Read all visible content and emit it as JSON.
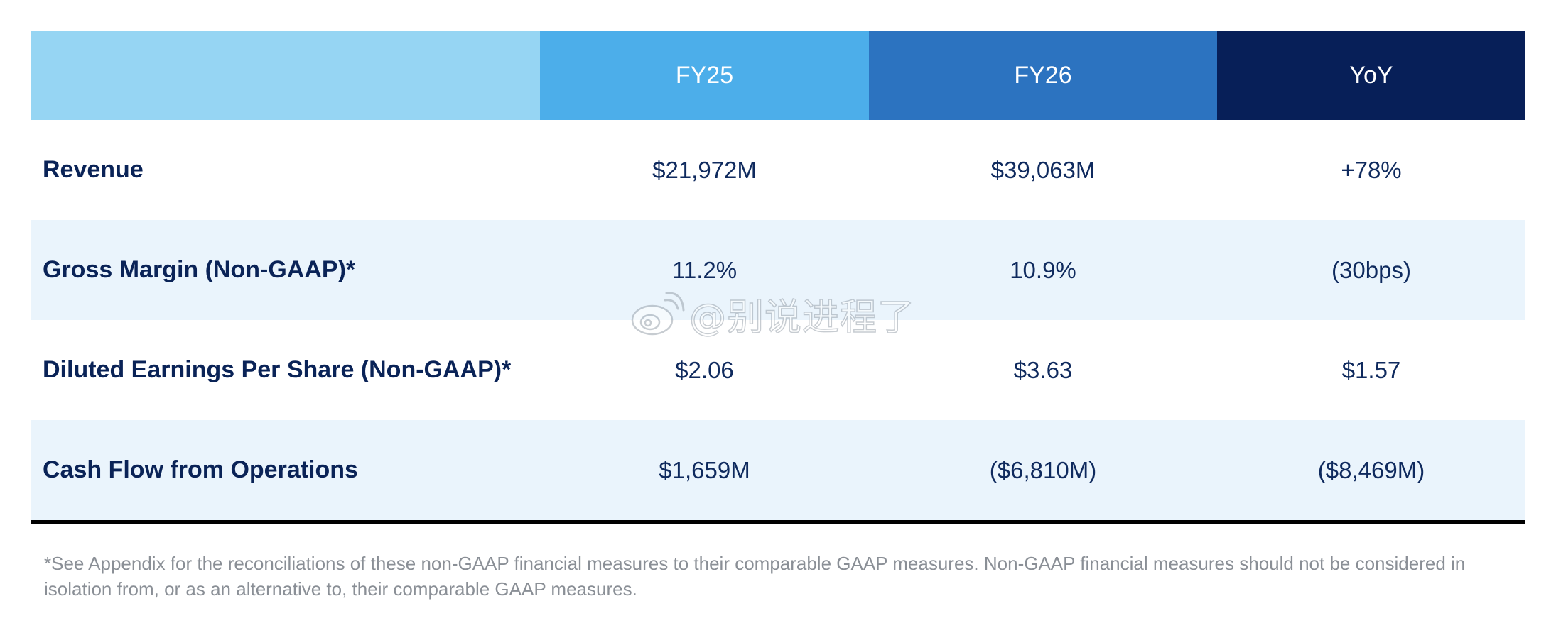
{
  "header": {
    "col_label": "",
    "col_fy25": "FY25",
    "col_fy26": "FY26",
    "col_yoy": "YoY"
  },
  "rows": [
    {
      "label": "Revenue",
      "fy25": "$21,972M",
      "fy26": "$39,063M",
      "yoy": "+78%"
    },
    {
      "label": "Gross Margin (Non-GAAP)*",
      "fy25": "11.2%",
      "fy26": "10.9%",
      "yoy": "(30bps)"
    },
    {
      "label": "Diluted Earnings Per Share (Non-GAAP)*",
      "fy25": "$2.06",
      "fy26": "$3.63",
      "yoy": "$1.57"
    },
    {
      "label": "Cash Flow from Operations",
      "fy25": "$1,659M",
      "fy26": "($6,810M)",
      "yoy": "($8,469M)"
    }
  ],
  "footnote": "*See Appendix for the reconciliations of these non-GAAP financial measures to their comparable GAAP measures. Non-GAAP financial measures should not be considered in isolation from, or as an alternative to, their comparable GAAP measures.",
  "watermark": {
    "icon": "weibo-icon",
    "text": "@别说进程了"
  },
  "colors": {
    "header_label_bg": "#96d5f3",
    "header_fy25_bg": "#4caeea",
    "header_fy26_bg": "#2c73c0",
    "header_yoy_bg": "#071f58",
    "row_shade": "#eaf4fc",
    "text_navy": "#0a2357",
    "footnote_gray": "#8a8f96"
  }
}
